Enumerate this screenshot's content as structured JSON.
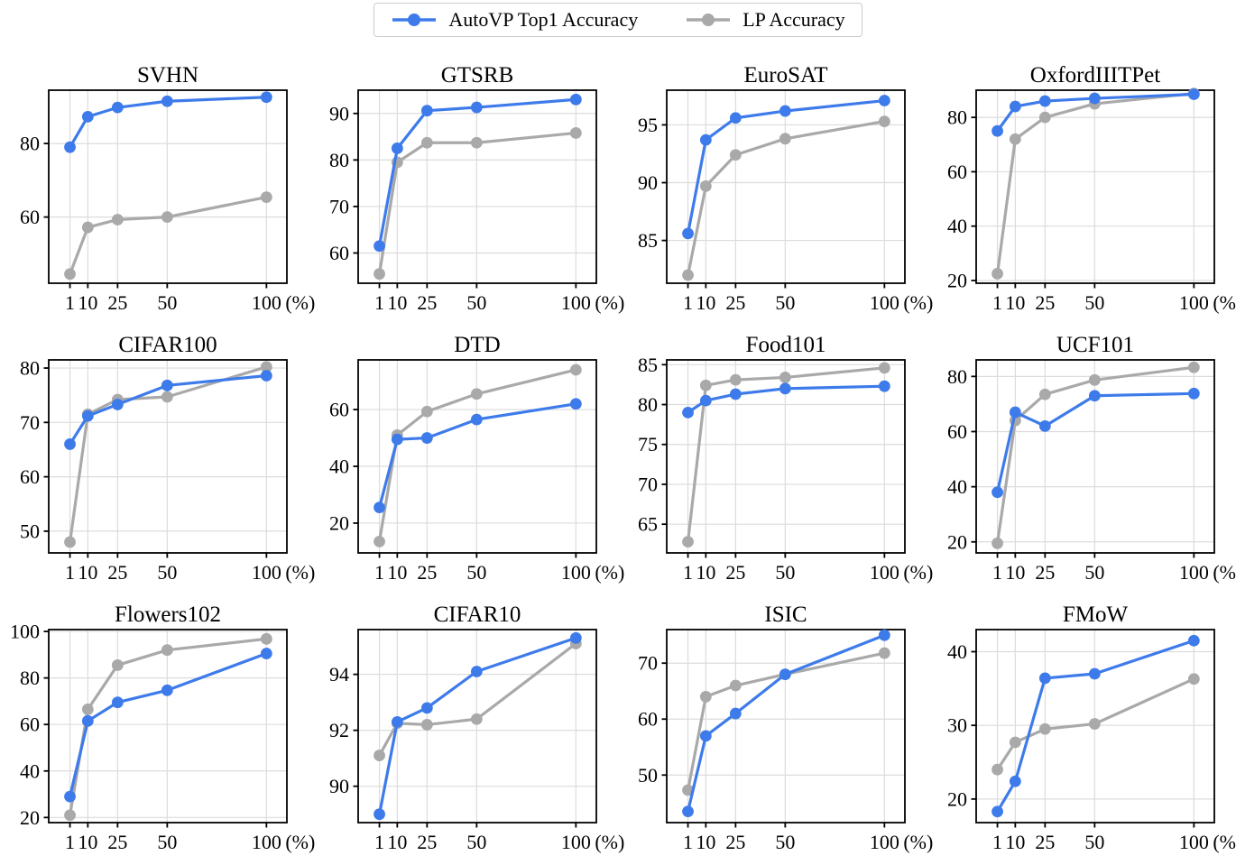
{
  "figure": {
    "background": "#ffffff",
    "x_tick_labels": [
      "1",
      "10",
      "25",
      "50",
      "100"
    ],
    "xlabel_suffix": "(%)"
  },
  "legend": {
    "items": [
      {
        "label": "AutoVP Top1 Accuracy",
        "color": "#3e7bea",
        "marker": "circle-line"
      },
      {
        "label": "LP Accuracy",
        "color": "#a9a9a9",
        "marker": "circle-line"
      }
    ]
  },
  "chart_data": {
    "type": "line",
    "x": [
      1,
      10,
      25,
      50,
      100
    ],
    "xlabel": "(%)",
    "xlim": [
      -9.7,
      110.3
    ],
    "grid": true,
    "legend_position": "top-center",
    "colors": {
      "autovp": "#3e7bea",
      "lp": "#a9a9a9",
      "gridline": "#dcdcdc",
      "axes": "#000000"
    },
    "series_names": [
      "AutoVP Top1 Accuracy",
      "LP Accuracy"
    ],
    "subplots": [
      {
        "title": "SVHN",
        "yticks": [
          60,
          80
        ],
        "ylim": [
          42.0,
          94.5
        ],
        "series": [
          {
            "name": "AutoVP Top1 Accuracy",
            "values": [
              79.0,
              87.3,
              89.8,
              91.5,
              92.6
            ]
          },
          {
            "name": "LP Accuracy",
            "values": [
              44.5,
              57.2,
              59.3,
              60.0,
              65.4
            ]
          }
        ]
      },
      {
        "title": "GTSRB",
        "yticks": [
          60,
          70,
          80,
          90
        ],
        "ylim": [
          53.5,
          95.0
        ],
        "series": [
          {
            "name": "AutoVP Top1 Accuracy",
            "values": [
              61.5,
              82.5,
              90.6,
              91.3,
              93.0
            ]
          },
          {
            "name": "LP Accuracy",
            "values": [
              55.5,
              79.5,
              83.7,
              83.7,
              85.8
            ]
          }
        ]
      },
      {
        "title": "EuroSAT",
        "yticks": [
          85,
          90,
          95
        ],
        "ylim": [
          81.3,
          98.0
        ],
        "series": [
          {
            "name": "AutoVP Top1 Accuracy",
            "values": [
              85.6,
              93.7,
              95.6,
              96.2,
              97.1
            ]
          },
          {
            "name": "LP Accuracy",
            "values": [
              82.0,
              89.7,
              92.4,
              93.8,
              95.3
            ]
          }
        ]
      },
      {
        "title": "OxfordIIITPet",
        "yticks": [
          20,
          40,
          60,
          80
        ],
        "ylim": [
          19.0,
          90.0
        ],
        "series": [
          {
            "name": "AutoVP Top1 Accuracy",
            "values": [
              75.0,
              84.0,
              86.0,
              87.0,
              88.5
            ]
          },
          {
            "name": "LP Accuracy",
            "values": [
              22.5,
              72.0,
              80.0,
              85.0,
              88.8
            ]
          }
        ]
      },
      {
        "title": "CIFAR100",
        "yticks": [
          50,
          60,
          70,
          80
        ],
        "ylim": [
          46.0,
          81.5
        ],
        "series": [
          {
            "name": "AutoVP Top1 Accuracy",
            "values": [
              66.0,
              71.2,
              73.3,
              76.8,
              78.6
            ]
          },
          {
            "name": "LP Accuracy",
            "values": [
              48.0,
              71.5,
              74.2,
              74.7,
              80.2
            ]
          }
        ]
      },
      {
        "title": "DTD",
        "yticks": [
          20,
          40,
          60
        ],
        "ylim": [
          9.5,
          77.5
        ],
        "series": [
          {
            "name": "AutoVP Top1 Accuracy",
            "values": [
              25.5,
              49.5,
              50.0,
              56.5,
              62.0
            ]
          },
          {
            "name": "LP Accuracy",
            "values": [
              13.5,
              51.0,
              59.3,
              65.5,
              74.0
            ]
          }
        ]
      },
      {
        "title": "Food101",
        "yticks": [
          65,
          70,
          75,
          80,
          85
        ],
        "ylim": [
          61.4,
          85.6
        ],
        "series": [
          {
            "name": "AutoVP Top1 Accuracy",
            "values": [
              79.0,
              80.5,
              81.3,
              82.0,
              82.3
            ]
          },
          {
            "name": "LP Accuracy",
            "values": [
              62.8,
              82.4,
              83.1,
              83.4,
              84.6
            ]
          }
        ]
      },
      {
        "title": "UCF101",
        "yticks": [
          20,
          40,
          60,
          80
        ],
        "ylim": [
          16.0,
          86.0
        ],
        "series": [
          {
            "name": "AutoVP Top1 Accuracy",
            "values": [
              38.0,
              67.0,
              62.0,
              73.0,
              73.8
            ]
          },
          {
            "name": "LP Accuracy",
            "values": [
              19.5,
              64.0,
              73.5,
              78.7,
              83.3
            ]
          }
        ]
      },
      {
        "title": "Flowers102",
        "yticks": [
          20,
          40,
          60,
          80,
          100
        ],
        "ylim": [
          17.8,
          100.8
        ],
        "series": [
          {
            "name": "AutoVP Top1 Accuracy",
            "values": [
              29.0,
              61.5,
              69.5,
              74.7,
              90.5
            ]
          },
          {
            "name": "LP Accuracy",
            "values": [
              21.0,
              66.5,
              85.5,
              92.0,
              96.8
            ]
          }
        ]
      },
      {
        "title": "CIFAR10",
        "yticks": [
          90,
          92,
          94
        ],
        "ylim": [
          88.7,
          95.6
        ],
        "series": [
          {
            "name": "AutoVP Top1 Accuracy",
            "values": [
              89.0,
              92.3,
              92.8,
              94.1,
              95.3
            ]
          },
          {
            "name": "LP Accuracy",
            "values": [
              91.1,
              92.25,
              92.2,
              92.4,
              95.1
            ]
          }
        ]
      },
      {
        "title": "ISIC",
        "yticks": [
          50,
          60,
          70
        ],
        "ylim": [
          41.5,
          76.0
        ],
        "series": [
          {
            "name": "AutoVP Top1 Accuracy",
            "values": [
              43.5,
              57.0,
              61.0,
              68.0,
              75.0
            ]
          },
          {
            "name": "LP Accuracy",
            "values": [
              47.3,
              64.0,
              66.0,
              68.0,
              71.8
            ]
          }
        ]
      },
      {
        "title": "FMoW",
        "yticks": [
          20,
          30,
          40
        ],
        "ylim": [
          16.8,
          43.0
        ],
        "series": [
          {
            "name": "AutoVP Top1 Accuracy",
            "values": [
              18.3,
              22.4,
              36.4,
              37.0,
              41.5
            ]
          },
          {
            "name": "LP Accuracy",
            "values": [
              24.0,
              27.7,
              29.5,
              30.2,
              36.3
            ]
          }
        ]
      }
    ]
  }
}
